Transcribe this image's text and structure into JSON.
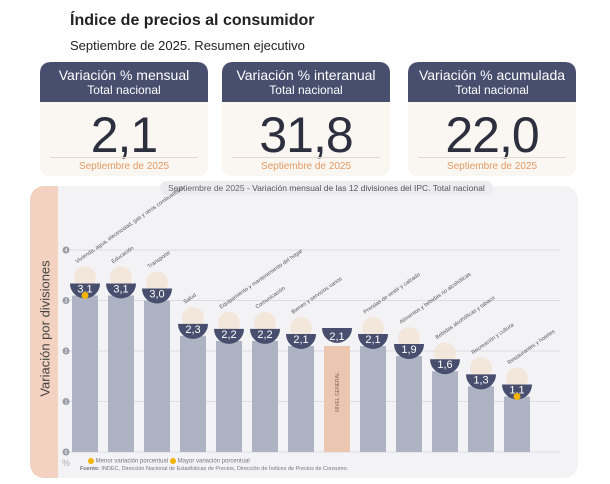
{
  "header": {
    "title": "Índice de precios al consumidor",
    "subtitle": "Septiembre de 2025. Resumen ejecutivo"
  },
  "cards": [
    {
      "title": "Variación % mensual",
      "sub": "Total nacional",
      "value": "2,1",
      "period": "Septiembre de 2025"
    },
    {
      "title": "Variación % interanual",
      "sub": "Total nacional",
      "value": "31,8",
      "period": "Septiembre de 2025"
    },
    {
      "title": "Variación % acumulada",
      "sub": "Total nacional",
      "value": "22,0",
      "period": "Septiembre de 2025"
    }
  ],
  "chart_data": {
    "type": "bar",
    "title_period": "Septiembre de 2025",
    "title": " - Variación mensual de las 12 divisiones del IPC. Total nacional",
    "ylabel": "Variación por divisiones",
    "yunit": "%",
    "ylim": [
      0,
      4
    ],
    "yticks": [
      0,
      1,
      2,
      3,
      4
    ],
    "grid": true,
    "categories": [
      "Vivienda, agua, electricidad, gas y otros combustibles",
      "Educación",
      "Transporte",
      "Salud",
      "Equipamiento y mantenimiento del hogar",
      "Comunicación",
      "Bienes y servicios varios",
      "NIVEL GENERAL",
      "Prendas de vestir y calzado",
      "Alimentos y bebidas no alcohólicas",
      "Bebidas alcohólicas y tabaco",
      "Recreación y cultura",
      "Restaurantes y hoteles"
    ],
    "values": [
      3.1,
      3.1,
      3.0,
      2.3,
      2.2,
      2.2,
      2.1,
      2.1,
      2.1,
      1.9,
      1.6,
      1.3,
      1.1
    ],
    "labels": [
      "3,1",
      "3,1",
      "3,0",
      "2,3",
      "2,2",
      "2,2",
      "2,1",
      "2,1",
      "2,1",
      "1,9",
      "1,6",
      "1,3",
      "1,1"
    ],
    "highlight": "NIVEL GENERAL",
    "colors": {
      "bar": "#aeb3c4",
      "general": "#ebc7b1",
      "badge": "#474e6e",
      "marker": "#f2b400"
    },
    "legend": [
      "Menor variación porcentual",
      "Mayor variación porcentual"
    ],
    "max_index": 0,
    "min_index": 12
  },
  "source_label": "Fuente:",
  "source": " INDEC, Dirección Nacional de Estadísticas de Precios, Dirección de Índices de Precios de Consumo."
}
